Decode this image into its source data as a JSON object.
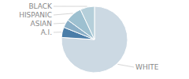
{
  "chart_data": {
    "type": "pie",
    "categories": [
      "WHITE",
      "A.I.",
      "ASIAN",
      "HISPANIC",
      "BLACK"
    ],
    "values": [
      76,
      5,
      4,
      8,
      7
    ],
    "colors": [
      "#ccd9e3",
      "#4a7da8",
      "#8aafc7",
      "#9dc0d0",
      "#b5cfda"
    ]
  }
}
